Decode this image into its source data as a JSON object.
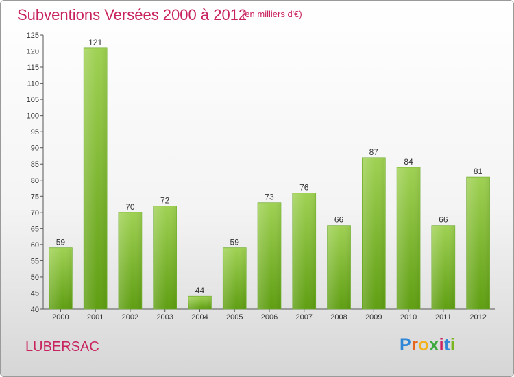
{
  "header": {
    "title": "Subventions Versées 2000 à 2012",
    "unit_note": "(en milliers d'€)"
  },
  "footer": {
    "city": "LUBERSAC",
    "logo_letters": [
      "P",
      "r",
      "o",
      "x",
      "i",
      "t",
      "i"
    ],
    "logo_colors": [
      "#2e86d6",
      "#e8641b",
      "#f2b21a",
      "#3aa83a",
      "#c8235f",
      "#2e86d6",
      "#7ab51d"
    ]
  },
  "chart_data": {
    "type": "bar",
    "categories": [
      "2000",
      "2001",
      "2002",
      "2003",
      "2004",
      "2005",
      "2006",
      "2007",
      "2008",
      "2009",
      "2010",
      "2011",
      "2012"
    ],
    "values": [
      59,
      121,
      70,
      72,
      44,
      59,
      73,
      76,
      66,
      87,
      84,
      66,
      81
    ],
    "ylim": [
      40,
      125
    ],
    "ytick_step": 5,
    "grid": false,
    "legend": "none",
    "bar_color_top": "#9fd153",
    "bar_color_bottom": "#5f9e12"
  }
}
